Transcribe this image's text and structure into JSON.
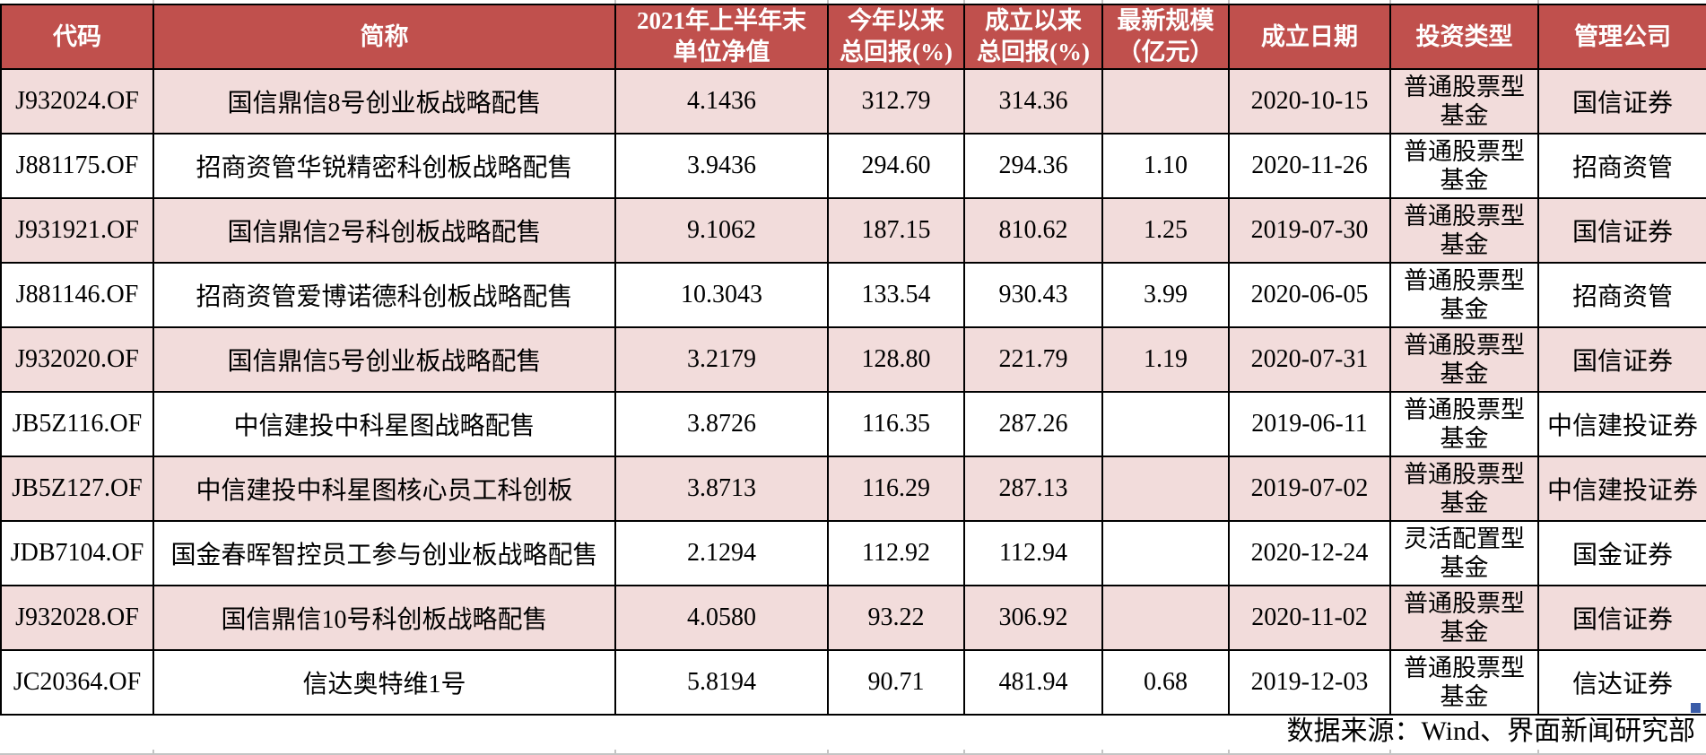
{
  "colors": {
    "header_bg": "#C0504D",
    "row_alt_bg": "#F2DCDB",
    "row_bg": "#FFFFFF",
    "border": "#000000",
    "selection_handle": "#3A5CA8",
    "gridline": "#C4C4C4"
  },
  "footer": {
    "source_note": "数据来源：Wind、界面新闻研究部"
  },
  "chart_data": {
    "type": "table",
    "columns": [
      "代码",
      "简称",
      "2021年上半年末\n单位净值",
      "今年以来\n总回报(%)",
      "成立以来\n总回报(%)",
      "最新规模\n（亿元）",
      "成立日期",
      "投资类型",
      "管理公司"
    ],
    "rows": [
      [
        "J932024.OF",
        "国信鼎信8号创业板战略配售",
        "4.1436",
        "312.79",
        "314.36",
        "",
        "2020-10-15",
        "普通股票型基金",
        "国信证券"
      ],
      [
        "J881175.OF",
        "招商资管华锐精密科创板战略配售",
        "3.9436",
        "294.60",
        "294.36",
        "1.10",
        "2020-11-26",
        "普通股票型基金",
        "招商资管"
      ],
      [
        "J931921.OF",
        "国信鼎信2号科创板战略配售",
        "9.1062",
        "187.15",
        "810.62",
        "1.25",
        "2019-07-30",
        "普通股票型基金",
        "国信证券"
      ],
      [
        "J881146.OF",
        "招商资管爱博诺德科创板战略配售",
        "10.3043",
        "133.54",
        "930.43",
        "3.99",
        "2020-06-05",
        "普通股票型基金",
        "招商资管"
      ],
      [
        "J932020.OF",
        "国信鼎信5号创业板战略配售",
        "3.2179",
        "128.80",
        "221.79",
        "1.19",
        "2020-07-31",
        "普通股票型基金",
        "国信证券"
      ],
      [
        "JB5Z116.OF",
        "中信建投中科星图战略配售",
        "3.8726",
        "116.35",
        "287.26",
        "",
        "2019-06-11",
        "普通股票型基金",
        "中信建投证券"
      ],
      [
        "JB5Z127.OF",
        "中信建投中科星图核心员工科创板",
        "3.8713",
        "116.29",
        "287.13",
        "",
        "2019-07-02",
        "普通股票型基金",
        "中信建投证券"
      ],
      [
        "JDB7104.OF",
        "国金春晖智控员工参与创业板战略配售",
        "2.1294",
        "112.92",
        "112.94",
        "",
        "2020-12-24",
        "灵活配置型基金",
        "国金证券"
      ],
      [
        "J932028.OF",
        "国信鼎信10号科创板战略配售",
        "4.0580",
        "93.22",
        "306.92",
        "",
        "2020-11-02",
        "普通股票型基金",
        "国信证券"
      ],
      [
        "JC20364.OF",
        "信达奥特维1号",
        "5.8194",
        "90.71",
        "481.94",
        "0.68",
        "2019-12-03",
        "普通股票型基金",
        "信达证券"
      ]
    ]
  }
}
